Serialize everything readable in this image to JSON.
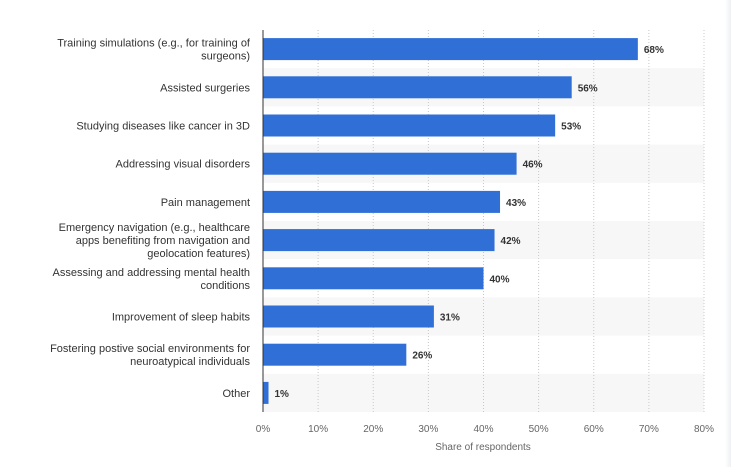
{
  "chart_data": {
    "type": "bar",
    "orientation": "horizontal",
    "categories": [
      [
        "Training simulations (e.g., for training of",
        "surgeons)"
      ],
      [
        "Assisted surgeries"
      ],
      [
        "Studying diseases like cancer in 3D"
      ],
      [
        "Addressing visual disorders"
      ],
      [
        "Pain management"
      ],
      [
        "Emergency navigation (e.g., healthcare",
        "apps benefiting from navigation and",
        "geolocation features)"
      ],
      [
        "Assessing and addressing mental health",
        "conditions"
      ],
      [
        "Improvement of sleep habits"
      ],
      [
        "Fostering postive social environments for",
        "neuroatypical individuals"
      ],
      [
        "Other"
      ]
    ],
    "values": [
      68,
      56,
      53,
      46,
      43,
      42,
      40,
      31,
      26,
      1
    ],
    "value_labels": [
      "68%",
      "56%",
      "53%",
      "46%",
      "43%",
      "42%",
      "40%",
      "31%",
      "26%",
      "1%"
    ],
    "xlabel": "Share of respondents",
    "x_ticks": [
      "0%",
      "10%",
      "20%",
      "30%",
      "40%",
      "50%",
      "60%",
      "70%",
      "80%"
    ],
    "xlim": [
      0,
      80
    ],
    "grid": true,
    "legend": "none",
    "colors": {
      "bar": "#2f6fd6",
      "alt_row": "#f7f7f7",
      "grid": "#c8c8c8",
      "axis": "#333333"
    }
  }
}
